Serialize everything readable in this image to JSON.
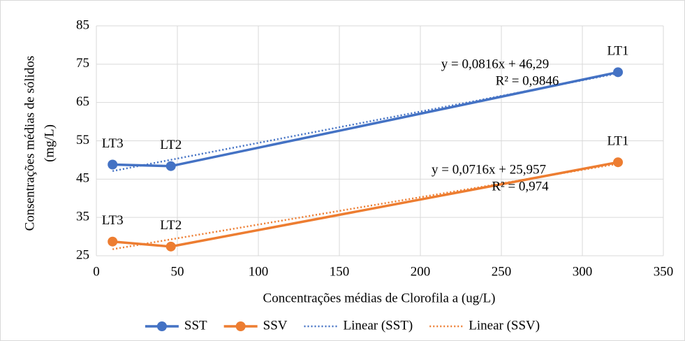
{
  "chart_data": {
    "type": "line",
    "xlabel": "Concentrações médias de Clorofila a (ug/L)",
    "ylabel": [
      "Consentrações médias de sólidos",
      "(mg/L)"
    ],
    "xlim": [
      0,
      350
    ],
    "xticks": [
      0,
      50,
      100,
      150,
      200,
      250,
      300,
      350
    ],
    "ylim": [
      25,
      85
    ],
    "yticks": [
      25,
      35,
      45,
      55,
      65,
      75,
      85
    ],
    "grid": true,
    "legend": "bottom",
    "series": [
      {
        "name": "SST",
        "color": "#4472c4",
        "style": "solid",
        "x": [
          10,
          46,
          322
        ],
        "values": [
          48.8,
          48.4,
          72.9
        ],
        "labels": [
          "LT3",
          "LT2",
          "LT1"
        ]
      },
      {
        "name": "SSV",
        "color": "#ed7d31",
        "style": "solid",
        "x": [
          10,
          46,
          322
        ],
        "values": [
          28.7,
          27.4,
          49.4
        ],
        "labels": [
          "LT3",
          "LT2",
          "LT1"
        ]
      },
      {
        "name": "Linear (SST)",
        "color": "#4472c4",
        "style": "dotted",
        "x": [
          10,
          322
        ],
        "values": [
          47.1,
          72.6
        ],
        "equation": "y = 0,0816x + 46,29",
        "r_squared": "R² = 0,9846"
      },
      {
        "name": "Linear (SSV)",
        "color": "#ed7d31",
        "style": "dotted",
        "x": [
          10,
          322
        ],
        "values": [
          26.7,
          49.0
        ],
        "equation": "y = 0,0716x + 25,957",
        "r_squared": "R² = 0,974"
      }
    ]
  }
}
